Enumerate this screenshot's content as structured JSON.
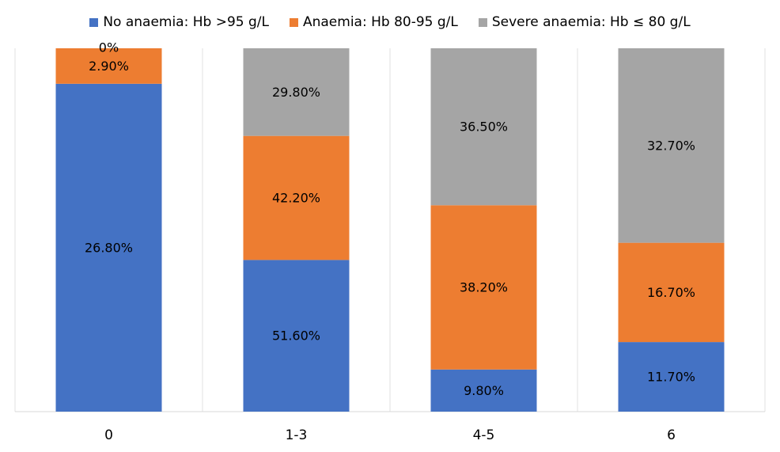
{
  "chart_data": {
    "type": "bar",
    "stacked": true,
    "categories": [
      "0",
      "1-3",
      "4-5",
      "6"
    ],
    "series": [
      {
        "name": "No anaemia: Hb >95 g/L",
        "color": "#4472C4",
        "values": [
          26.8,
          51.6,
          9.8,
          11.7
        ],
        "labels": [
          "26.80%",
          "51.60%",
          "9.80%",
          "11.70%"
        ]
      },
      {
        "name": "Anaemia: Hb 80-95 g/L",
        "color": "#ED7D31",
        "values": [
          2.9,
          42.2,
          38.2,
          16.7
        ],
        "labels": [
          "2.90%",
          "42.20%",
          "38.20%",
          "16.70%"
        ]
      },
      {
        "name": "Severe anaemia: Hb ≤ 80 g/L",
        "color": "#A5A5A5",
        "values": [
          0,
          29.8,
          36.5,
          32.7
        ],
        "labels": [
          "0%",
          "29.80%",
          "36.50%",
          "32.70%"
        ]
      }
    ],
    "legend_position": "top",
    "grid": false,
    "note": "Each bar is scaled to fill the full plot height (100% stacked)."
  }
}
